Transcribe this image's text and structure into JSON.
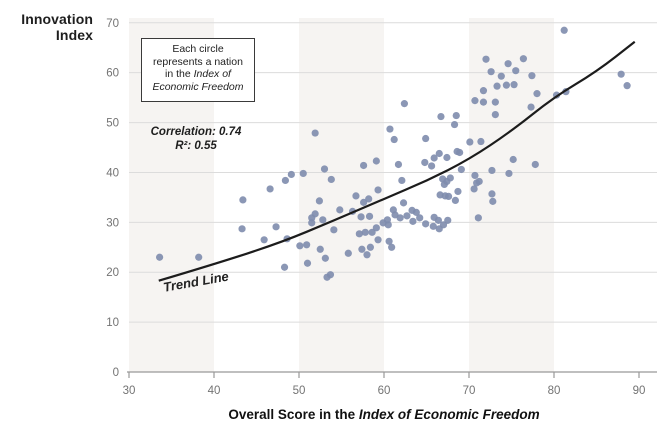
{
  "title": {
    "line1": "Innovation",
    "line2": "Index"
  },
  "annotation_box": {
    "line1": "Each circle",
    "line2": "represents a nation",
    "line3_regular": "in the ",
    "line3_italic": "Index of",
    "line4_italic": "Economic Freedom"
  },
  "stats": {
    "correlation": "Correlation: 0.74",
    "r_squared": "R²: 0.55"
  },
  "trend_label": "Trend Line",
  "x_axis": {
    "title_regular": "Overall Score in the ",
    "title_italic": "Index of Economic Freedom"
  },
  "colors": {
    "point": "#7e8cad",
    "trend_line": "#1c1c1c",
    "band": "#f6f4f2",
    "gridline": "#dcdcdc",
    "axis_line": "#999999",
    "tick_label": "#737373",
    "text_dark": "#1e1e1e",
    "background": "#ffffff"
  },
  "chart_data": {
    "type": "scatter",
    "title": "Innovation Index vs Overall Score in the Index of Economic Freedom",
    "xlabel": "Overall Score in the Index of Economic Freedom",
    "ylabel": "Innovation Index",
    "xlim": [
      30,
      90
    ],
    "ylim": [
      0,
      70
    ],
    "x_ticks": [
      30,
      40,
      50,
      60,
      70,
      80,
      90
    ],
    "y_ticks": [
      0,
      10,
      20,
      30,
      40,
      50,
      60,
      70
    ],
    "grid": true,
    "background_bands_x": [
      [
        30,
        40
      ],
      [
        50,
        60
      ],
      [
        70,
        80
      ]
    ],
    "stats": {
      "correlation": 0.74,
      "r_squared": 0.55
    },
    "points": [
      [
        33.6,
        23.0
      ],
      [
        38.2,
        23.0
      ],
      [
        43.4,
        34.5
      ],
      [
        46.6,
        36.7
      ],
      [
        48.4,
        38.4
      ],
      [
        43.3,
        28.7
      ],
      [
        47.3,
        29.1
      ],
      [
        45.9,
        26.5
      ],
      [
        48.6,
        26.7
      ],
      [
        48.3,
        21.0
      ],
      [
        49.1,
        39.6
      ],
      [
        50.5,
        39.8
      ],
      [
        53.0,
        40.7
      ],
      [
        53.8,
        38.6
      ],
      [
        57.6,
        41.4
      ],
      [
        59.1,
        42.3
      ],
      [
        61.7,
        41.6
      ],
      [
        64.8,
        42.0
      ],
      [
        65.6,
        41.3
      ],
      [
        51.9,
        47.9
      ],
      [
        59.3,
        36.5
      ],
      [
        56.7,
        35.3
      ],
      [
        57.6,
        34.0
      ],
      [
        58.2,
        34.7
      ],
      [
        56.3,
        32.2
      ],
      [
        57.3,
        31.1
      ],
      [
        58.3,
        31.2
      ],
      [
        54.8,
        32.5
      ],
      [
        51.9,
        31.7
      ],
      [
        51.5,
        30.9
      ],
      [
        51.5,
        29.9
      ],
      [
        52.8,
        30.5
      ],
      [
        52.4,
        34.3
      ],
      [
        54.1,
        28.5
      ],
      [
        52.5,
        24.6
      ],
      [
        50.9,
        25.5
      ],
      [
        50.1,
        25.3
      ],
      [
        51.0,
        21.8
      ],
      [
        53.1,
        22.8
      ],
      [
        53.3,
        19.0
      ],
      [
        53.7,
        19.5
      ],
      [
        55.8,
        23.8
      ],
      [
        57.4,
        24.6
      ],
      [
        58.0,
        23.5
      ],
      [
        58.4,
        25.0
      ],
      [
        57.1,
        27.7
      ],
      [
        57.8,
        28.0
      ],
      [
        58.6,
        28.0
      ],
      [
        59.1,
        28.9
      ],
      [
        59.3,
        26.5
      ],
      [
        59.9,
        29.9
      ],
      [
        60.5,
        29.5
      ],
      [
        60.4,
        30.5
      ],
      [
        61.3,
        31.5
      ],
      [
        61.1,
        32.5
      ],
      [
        61.9,
        30.9
      ],
      [
        62.7,
        31.3
      ],
      [
        60.6,
        26.2
      ],
      [
        60.9,
        25.0
      ],
      [
        62.3,
        33.9
      ],
      [
        63.3,
        32.4
      ],
      [
        63.8,
        32.0
      ],
      [
        63.4,
        30.2
      ],
      [
        64.2,
        30.9
      ],
      [
        64.9,
        29.7
      ],
      [
        65.9,
        31.0
      ],
      [
        65.8,
        29.2
      ],
      [
        66.5,
        28.7
      ],
      [
        66.4,
        30.4
      ],
      [
        67.5,
        30.4
      ],
      [
        67.0,
        29.5
      ],
      [
        71.1,
        30.9
      ],
      [
        62.1,
        38.4
      ],
      [
        62.4,
        53.8
      ],
      [
        60.7,
        48.7
      ],
      [
        61.2,
        46.6
      ],
      [
        64.9,
        46.8
      ],
      [
        66.7,
        51.2
      ],
      [
        68.5,
        51.4
      ],
      [
        68.3,
        49.6
      ],
      [
        65.9,
        42.9
      ],
      [
        66.5,
        43.8
      ],
      [
        67.4,
        43.0
      ],
      [
        68.6,
        44.2
      ],
      [
        68.9,
        44.0
      ],
      [
        69.1,
        40.6
      ],
      [
        70.1,
        46.1
      ],
      [
        71.4,
        46.2
      ],
      [
        70.7,
        39.4
      ],
      [
        70.9,
        37.9
      ],
      [
        71.2,
        38.2
      ],
      [
        70.6,
        36.7
      ],
      [
        66.9,
        38.7
      ],
      [
        67.4,
        38.2
      ],
      [
        67.1,
        37.6
      ],
      [
        67.8,
        38.9
      ],
      [
        66.6,
        35.5
      ],
      [
        67.2,
        35.3
      ],
      [
        67.6,
        35.2
      ],
      [
        68.7,
        36.2
      ],
      [
        68.4,
        34.4
      ],
      [
        72.7,
        40.4
      ],
      [
        75.2,
        42.6
      ],
      [
        74.7,
        39.8
      ],
      [
        77.8,
        41.6
      ],
      [
        72.7,
        35.7
      ],
      [
        72.8,
        34.2
      ],
      [
        70.7,
        54.4
      ],
      [
        71.7,
        54.1
      ],
      [
        73.1,
        54.1
      ],
      [
        81.2,
        68.5
      ],
      [
        72.0,
        62.7
      ],
      [
        72.6,
        60.2
      ],
      [
        74.6,
        61.8
      ],
      [
        76.4,
        62.8
      ],
      [
        75.5,
        60.4
      ],
      [
        73.8,
        59.3
      ],
      [
        77.4,
        59.4
      ],
      [
        73.3,
        57.3
      ],
      [
        74.4,
        57.5
      ],
      [
        75.3,
        57.6
      ],
      [
        71.7,
        56.4
      ],
      [
        78.0,
        55.8
      ],
      [
        77.3,
        53.1
      ],
      [
        80.3,
        55.5
      ],
      [
        81.4,
        56.2
      ],
      [
        73.1,
        51.6
      ],
      [
        87.9,
        59.7
      ],
      [
        88.6,
        57.4
      ]
    ],
    "trend_line": {
      "label": "Trend Line",
      "points": [
        [
          33.5,
          18.3
        ],
        [
          40,
          21.6
        ],
        [
          47.8,
          25.9
        ],
        [
          54,
          30.3
        ],
        [
          60,
          34.7
        ],
        [
          65,
          38.3
        ],
        [
          70,
          42.6
        ],
        [
          75,
          48.3
        ],
        [
          80,
          55.1
        ],
        [
          85,
          60.2
        ],
        [
          89.5,
          66.2
        ]
      ]
    }
  }
}
